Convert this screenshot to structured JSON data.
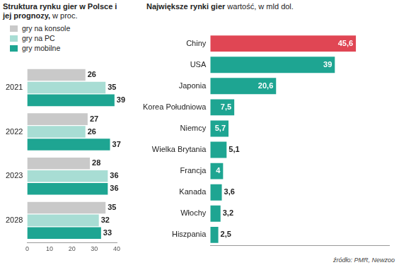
{
  "chart_data": [
    {
      "type": "bar",
      "orientation": "horizontal",
      "title": "Struktura rynku gier w Polsce i jej prognozy,",
      "subtitle": "w proc.",
      "categories": [
        "2021",
        "2022",
        "2023",
        "2028"
      ],
      "series": [
        {
          "name": "gry na konsole",
          "color": "#c9c9c9",
          "values": [
            26,
            27,
            28,
            35
          ]
        },
        {
          "name": "gry na PC",
          "color": "#a8ddd4",
          "values": [
            35,
            26,
            36,
            32
          ]
        },
        {
          "name": "gry mobilne",
          "color": "#1ea592",
          "values": [
            39,
            37,
            36,
            33
          ]
        }
      ],
      "xlim": [
        0,
        40
      ],
      "xticks": [
        0,
        10,
        20,
        30,
        40
      ],
      "grid": false,
      "legend": "top-left",
      "data_labels": true
    },
    {
      "type": "bar",
      "orientation": "horizontal",
      "title": "Największe rynki gier",
      "subtitle": "wartość, w mld dol.",
      "categories": [
        "Chiny",
        "USA",
        "Japonia",
        "Korea Południowa",
        "Niemcy",
        "Wielka Brytania",
        "Francja",
        "Kanada",
        "Włochy",
        "Hiszpania"
      ],
      "values": [
        45.6,
        39,
        20.6,
        7.5,
        5.7,
        5.1,
        4,
        3.6,
        3.2,
        2.5
      ],
      "value_labels": [
        "45,6",
        "39",
        "20,6",
        "7,5",
        "5,7",
        "5,1",
        "4",
        "3,6",
        "3,2",
        "2,5"
      ],
      "colors": [
        "#e04654",
        "#1ea592",
        "#1ea592",
        "#1ea592",
        "#1ea592",
        "#1ea592",
        "#1ea592",
        "#1ea592",
        "#1ea592",
        "#1ea592"
      ],
      "xlim": [
        0,
        56
      ],
      "tick_labels": "y",
      "grid": false,
      "data_labels": true,
      "annotations": [
        "źródło: PMR, Newzoo"
      ]
    }
  ]
}
